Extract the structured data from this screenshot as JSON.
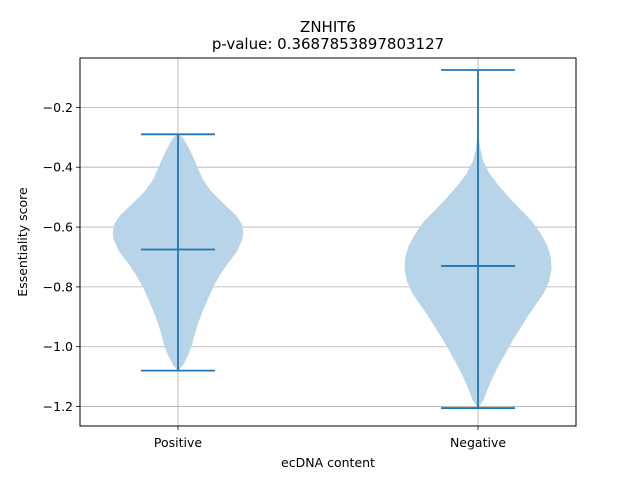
{
  "chart_data": {
    "type": "violin",
    "title": "ZNHIT6",
    "subtitle": "p-value: 0.3687853897803127",
    "xlabel": "ecDNA content",
    "ylabel": "Essentiality score",
    "categories": [
      "Positive",
      "Negative"
    ],
    "ylim": [
      -1.265,
      -0.035
    ],
    "yticks": [
      -1.2,
      -1.0,
      -0.8,
      -0.6,
      -0.4,
      -0.2
    ],
    "ytick_labels": [
      "−1.2",
      "−1.0",
      "−0.8",
      "−0.6",
      "−0.4",
      "−0.2"
    ],
    "grid": true,
    "colors": {
      "body": "#b8d4e8",
      "lines": "#1f77b4",
      "grid": "#b0b0b0"
    },
    "violins": [
      {
        "category": "Positive",
        "min": -1.08,
        "max": -0.29,
        "median": -0.675,
        "profile": [
          [
            -1.08,
            0.0
          ],
          [
            -1.06,
            0.07
          ],
          [
            -1.03,
            0.13
          ],
          [
            -1.0,
            0.18
          ],
          [
            -0.96,
            0.22
          ],
          [
            -0.92,
            0.27
          ],
          [
            -0.88,
            0.33
          ],
          [
            -0.84,
            0.4
          ],
          [
            -0.8,
            0.47
          ],
          [
            -0.76,
            0.56
          ],
          [
            -0.72,
            0.67
          ],
          [
            -0.68,
            0.79
          ],
          [
            -0.64,
            0.86
          ],
          [
            -0.62,
            0.87
          ],
          [
            -0.59,
            0.85
          ],
          [
            -0.56,
            0.77
          ],
          [
            -0.52,
            0.6
          ],
          [
            -0.48,
            0.44
          ],
          [
            -0.44,
            0.33
          ],
          [
            -0.4,
            0.26
          ],
          [
            -0.36,
            0.19
          ],
          [
            -0.33,
            0.13
          ],
          [
            -0.3,
            0.06
          ],
          [
            -0.29,
            0.0
          ]
        ]
      },
      {
        "category": "Negative",
        "min": -1.205,
        "max": -0.075,
        "median": -0.73,
        "profile": [
          [
            -1.205,
            0.0
          ],
          [
            -1.18,
            0.07
          ],
          [
            -1.14,
            0.13
          ],
          [
            -1.1,
            0.2
          ],
          [
            -1.06,
            0.28
          ],
          [
            -1.02,
            0.37
          ],
          [
            -0.98,
            0.46
          ],
          [
            -0.94,
            0.56
          ],
          [
            -0.9,
            0.66
          ],
          [
            -0.86,
            0.77
          ],
          [
            -0.82,
            0.88
          ],
          [
            -0.78,
            0.95
          ],
          [
            -0.74,
            0.98
          ],
          [
            -0.7,
            0.97
          ],
          [
            -0.66,
            0.92
          ],
          [
            -0.62,
            0.83
          ],
          [
            -0.58,
            0.72
          ],
          [
            -0.54,
            0.56
          ],
          [
            -0.5,
            0.41
          ],
          [
            -0.46,
            0.27
          ],
          [
            -0.42,
            0.15
          ],
          [
            -0.38,
            0.07
          ],
          [
            -0.34,
            0.03
          ],
          [
            -0.3,
            0.01
          ],
          [
            -0.2,
            0.005
          ],
          [
            -0.1,
            0.005
          ],
          [
            -0.075,
            0.0
          ]
        ]
      }
    ]
  }
}
